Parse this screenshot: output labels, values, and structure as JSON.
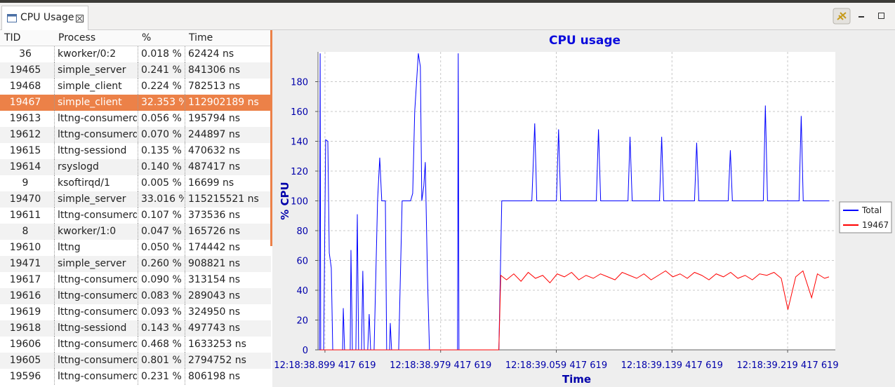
{
  "tab": {
    "title": "CPU Usage"
  },
  "table": {
    "columns": [
      "TID",
      "Process",
      "%",
      "Time"
    ],
    "rows": [
      [
        "36",
        "kworker/0:2",
        "0.018 %",
        "62424 ns"
      ],
      [
        "19465",
        "simple_server",
        "0.241 %",
        "841306 ns"
      ],
      [
        "19468",
        "simple_client",
        "0.224 %",
        "782513 ns"
      ],
      [
        "19467",
        "simple_client",
        "32.353 %",
        "112902189 ns"
      ],
      [
        "19613",
        "lttng-consumerd",
        "0.056 %",
        "195794 ns"
      ],
      [
        "19612",
        "lttng-consumerd",
        "0.070 %",
        "244897 ns"
      ],
      [
        "19615",
        "lttng-sessiond",
        "0.135 %",
        "470632 ns"
      ],
      [
        "19614",
        "rsyslogd",
        "0.140 %",
        "487417 ns"
      ],
      [
        "9",
        "ksoftirqd/1",
        "0.005 %",
        "16699 ns"
      ],
      [
        "19470",
        "simple_server",
        "33.016 %",
        "115215521 ns"
      ],
      [
        "19611",
        "lttng-consumerd",
        "0.107 %",
        "373536 ns"
      ],
      [
        "8",
        "kworker/1:0",
        "0.047 %",
        "165726 ns"
      ],
      [
        "19610",
        "lttng",
        "0.050 %",
        "174442 ns"
      ],
      [
        "19471",
        "simple_server",
        "0.260 %",
        "908821 ns"
      ],
      [
        "19617",
        "lttng-consumerd",
        "0.090 %",
        "313154 ns"
      ],
      [
        "19616",
        "lttng-consumerd",
        "0.083 %",
        "289043 ns"
      ],
      [
        "19619",
        "lttng-consumerd",
        "0.093 %",
        "324950 ns"
      ],
      [
        "19618",
        "lttng-sessiond",
        "0.143 %",
        "497743 ns"
      ],
      [
        "19606",
        "lttng-consumerd",
        "0.468 %",
        "1633253 ns"
      ],
      [
        "19605",
        "lttng-consumerd",
        "0.801 %",
        "2794752 ns"
      ],
      [
        "19596",
        "lttng-consumerd",
        "0.231 %",
        "806198 ns"
      ]
    ]
  },
  "chart_data": {
    "type": "line",
    "title": "CPU usage",
    "x_label": "Time",
    "y_label": "% CPU",
    "xlim": [
      38.8946,
      39.2524
    ],
    "ylim": [
      0,
      200
    ],
    "xticks": [
      {
        "value": 38.899417619,
        "label": "12:18:38.899 417 619"
      },
      {
        "value": 38.979417619,
        "label": "12:18:38.979 417 619"
      },
      {
        "value": 39.059417619,
        "label": "12:18:39.059 417 619"
      },
      {
        "value": 39.139417619,
        "label": "12:18:39.139 417 619"
      },
      {
        "value": 39.219417619,
        "label": "12:18:39.219 417 619"
      }
    ],
    "yticks": [
      0,
      20,
      40,
      60,
      80,
      100,
      120,
      140,
      160,
      180
    ],
    "grid": true,
    "legend": "right",
    "series": [
      {
        "name": "Total",
        "color": "#0000ff",
        "x": [
          38.8956,
          38.8961,
          38.8965,
          38.8985,
          38.8999,
          38.9014,
          38.9024,
          38.9038,
          38.9048,
          38.9116,
          38.9121,
          38.913,
          38.9169,
          38.9174,
          38.9184,
          38.9208,
          38.9218,
          38.9227,
          38.9247,
          38.9256,
          38.9266,
          38.929,
          38.93,
          38.931,
          38.9334,
          38.9358,
          38.9373,
          38.9387,
          38.9412,
          38.9421,
          38.9441,
          38.9446,
          38.9455,
          38.9504,
          38.9528,
          38.9586,
          38.9601,
          38.9615,
          38.964,
          38.9654,
          38.9664,
          38.9678,
          38.9688,
          38.9703,
          38.9717,
          38.9911,
          38.9916,
          38.9921,
          39.0197,
          39.0217,
          39.0425,
          39.0445,
          39.0459,
          39.0595,
          39.061,
          39.0624,
          39.0871,
          39.0886,
          39.0901,
          39.109,
          39.1104,
          39.1119,
          39.1308,
          39.1323,
          39.1337,
          39.155,
          39.1565,
          39.158,
          39.1783,
          39.1798,
          39.1812,
          39.2026,
          39.204,
          39.2055,
          39.2273,
          39.2288,
          39.2302,
          39.2482
        ],
        "values": [
          0,
          199,
          0,
          0,
          141,
          140,
          65,
          55,
          0,
          0,
          28,
          0,
          0,
          67,
          0,
          0,
          91,
          0,
          0,
          53,
          0,
          0,
          24,
          0,
          0,
          100,
          129,
          100,
          100,
          0,
          0,
          18,
          0,
          0,
          100,
          100,
          105,
          160,
          199,
          190,
          100,
          110,
          126,
          50,
          0,
          0,
          199,
          0,
          0,
          100,
          100,
          152,
          100,
          100,
          148,
          100,
          100,
          148,
          100,
          100,
          143,
          100,
          100,
          143,
          100,
          100,
          139,
          100,
          100,
          134,
          100,
          100,
          164,
          100,
          100,
          157,
          100,
          100
        ]
      },
      {
        "name": "19467",
        "color": "#ff0000",
        "x": [
          38.8956,
          39.0197,
          39.021,
          39.025,
          39.03,
          39.035,
          39.04,
          39.045,
          39.05,
          39.055,
          39.06,
          39.065,
          39.07,
          39.075,
          39.08,
          39.085,
          39.09,
          39.095,
          39.1,
          39.105,
          39.11,
          39.115,
          39.12,
          39.125,
          39.13,
          39.135,
          39.14,
          39.145,
          39.15,
          39.155,
          39.16,
          39.165,
          39.17,
          39.175,
          39.18,
          39.185,
          39.19,
          39.195,
          39.2,
          39.205,
          39.21,
          39.215,
          39.2196,
          39.225,
          39.23,
          39.236,
          39.24,
          39.245,
          39.248
        ],
        "values": [
          0,
          0,
          50,
          47,
          51,
          46,
          52,
          48,
          50,
          45,
          51,
          49,
          52,
          47,
          50,
          48,
          51,
          49,
          47,
          52,
          50,
          48,
          51,
          47,
          50,
          53,
          49,
          51,
          48,
          52,
          50,
          47,
          51,
          49,
          52,
          48,
          50,
          47,
          51,
          50,
          52,
          48,
          27,
          49,
          53,
          35,
          51,
          48,
          49
        ]
      }
    ]
  }
}
